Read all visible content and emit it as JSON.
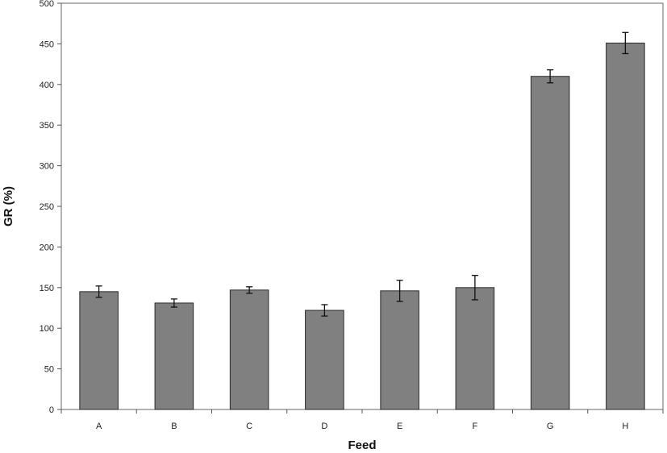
{
  "chart_data": {
    "type": "bar",
    "categories": [
      "A",
      "B",
      "C",
      "D",
      "E",
      "F",
      "G",
      "H"
    ],
    "values": [
      145,
      131,
      147,
      122,
      146,
      150,
      410,
      451
    ],
    "errors": [
      7,
      5,
      4,
      7,
      13,
      15,
      8,
      13
    ],
    "title": "",
    "xlabel": "Feed",
    "ylabel": "GR (%)",
    "ylim": [
      0,
      500
    ],
    "yticks": [
      0,
      50,
      100,
      150,
      200,
      250,
      300,
      350,
      400,
      450,
      500
    ],
    "grid": false,
    "legend": "none",
    "bar_color": "#808080"
  }
}
